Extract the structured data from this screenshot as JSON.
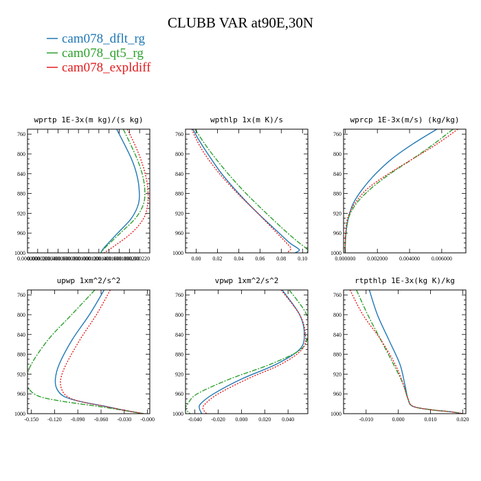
{
  "title": "CLUBB VAR at90E,30N",
  "legend": [
    {
      "label": "cam078_dflt_rg",
      "color": "#1f77b4",
      "dash": "solid"
    },
    {
      "label": "cam078_qt5_rg",
      "color": "#2ca02c",
      "dash": "dashdot"
    },
    {
      "label": "cam078_expldiff",
      "color": "#e31a1c",
      "dash": "dotted"
    }
  ],
  "chart_data": [
    {
      "type": "line",
      "title": "wprtp  1E-3x(m kg)/(s kg)",
      "xlim": [
        0.0,
        0.00024
      ],
      "ylim": [
        1000,
        750
      ],
      "xticks": [
        0.0,
        2e-05,
        4e-05,
        6e-05,
        8e-05,
        0.0001,
        0.00012,
        0.00014,
        0.00016,
        0.00018,
        0.0002,
        0.00022
      ],
      "xtick_labels": [
        "0.000000",
        "0.000020",
        "0.000040",
        "0.000060",
        "0.000080",
        "0.000100",
        "0.000120",
        "0.000140",
        "0.000160",
        "0.000180",
        "0.000200",
        "0.000220"
      ],
      "yticks": [
        760,
        800,
        840,
        880,
        920,
        960,
        1000
      ],
      "y": [
        750,
        780,
        810,
        840,
        870,
        900,
        930,
        960,
        990,
        1000
      ],
      "series": [
        {
          "name": "cam078_dflt_rg",
          "x": [
            0.000175,
            0.00019,
            0.000204,
            0.000214,
            0.000219,
            0.000218,
            0.000204,
            0.000177,
            0.00015,
            0.000144
          ]
        },
        {
          "name": "cam078_qt5_rg",
          "x": [
            0.000188,
            0.000202,
            0.000215,
            0.000225,
            0.00023,
            0.000228,
            0.000212,
            0.000182,
            0.000152,
            0.000144
          ]
        },
        {
          "name": "cam078_expldiff",
          "x": [
            0.000196,
            0.00021,
            0.000222,
            0.000231,
            0.000236,
            0.000236,
            0.000228,
            0.000204,
            0.000165,
            0.00015
          ]
        }
      ]
    },
    {
      "type": "line",
      "title": "wpthlp  1x(m K)/s",
      "xlim": [
        -0.01,
        0.105
      ],
      "ylim": [
        1000,
        750
      ],
      "xticks": [
        0.0,
        0.02,
        0.04,
        0.06,
        0.08,
        0.1
      ],
      "xtick_labels": [
        "0.00",
        "0.02",
        "0.04",
        "0.06",
        "0.08",
        "0.10"
      ],
      "yticks": [
        760,
        800,
        840,
        880,
        920,
        960,
        1000
      ],
      "y": [
        750,
        770,
        800,
        840,
        880,
        920,
        960,
        980,
        990,
        995,
        1000
      ],
      "series": [
        {
          "name": "cam078_dflt_rg",
          "x": [
            -0.003,
            0.002,
            0.011,
            0.024,
            0.04,
            0.058,
            0.078,
            0.088,
            0.095,
            0.097,
            0.093
          ]
        },
        {
          "name": "cam078_qt5_rg",
          "x": [
            -0.001,
            0.005,
            0.015,
            0.03,
            0.047,
            0.066,
            0.086,
            0.097,
            0.103,
            0.105,
            0.104
          ]
        },
        {
          "name": "cam078_expldiff",
          "x": [
            -0.004,
            0.0,
            0.008,
            0.022,
            0.039,
            0.058,
            0.076,
            0.085,
            0.089,
            0.088,
            0.085
          ]
        }
      ]
    },
    {
      "type": "line",
      "title": "wprcp  1E-3x(m/s) (kg/kg)",
      "xlim": [
        -0.0001,
        0.0075
      ],
      "ylim": [
        1000,
        750
      ],
      "xticks": [
        0.0,
        0.002,
        0.004,
        0.006
      ],
      "xtick_labels": [
        "0.000000",
        "0.002000",
        "0.004000",
        "0.006000"
      ],
      "yticks": [
        760,
        800,
        840,
        880,
        920,
        960,
        1000
      ],
      "y": [
        750,
        780,
        810,
        840,
        870,
        900,
        930,
        960,
        990,
        1000
      ],
      "series": [
        {
          "name": "cam078_dflt_rg",
          "x": [
            0.0057,
            0.0042,
            0.0029,
            0.0019,
            0.0011,
            0.0005,
            0.0002,
            5e-05,
            0.0,
            0.0
          ]
        },
        {
          "name": "cam078_qt5_rg",
          "x": [
            0.0067,
            0.0055,
            0.0042,
            0.0028,
            0.0016,
            0.0007,
            0.0002,
            5e-05,
            0.0,
            0.0
          ]
        },
        {
          "name": "cam078_expldiff",
          "x": [
            0.007,
            0.0057,
            0.0042,
            0.0027,
            0.0014,
            0.0006,
            0.00015,
            3e-05,
            0.0,
            0.0
          ]
        }
      ]
    },
    {
      "type": "line",
      "title": "upwp  1xm^2/s^2",
      "xlim": [
        -0.155,
        0.003
      ],
      "ylim": [
        1000,
        750
      ],
      "xticks": [
        -0.15,
        -0.12,
        -0.09,
        -0.06,
        -0.03,
        0.0
      ],
      "xtick_labels": [
        "-0.150",
        "-0.120",
        "-0.090",
        "-0.060",
        "-0.030",
        "-0.000"
      ],
      "yticks": [
        760,
        800,
        840,
        880,
        920,
        960,
        1000
      ],
      "y": [
        750,
        800,
        850,
        900,
        930,
        950,
        965,
        975,
        985,
        993,
        1000
      ],
      "series": [
        {
          "name": "cam078_dflt_rg",
          "x": [
            -0.056,
            -0.075,
            -0.097,
            -0.114,
            -0.119,
            -0.117,
            -0.108,
            -0.088,
            -0.055,
            -0.03,
            -0.005
          ]
        },
        {
          "name": "cam078_qt5_rg",
          "x": [
            -0.068,
            -0.098,
            -0.128,
            -0.15,
            -0.156,
            -0.153,
            -0.14,
            -0.11,
            -0.065,
            -0.032,
            -0.005
          ]
        },
        {
          "name": "cam078_expldiff",
          "x": [
            -0.048,
            -0.066,
            -0.087,
            -0.105,
            -0.112,
            -0.111,
            -0.104,
            -0.088,
            -0.056,
            -0.03,
            -0.005
          ]
        }
      ]
    },
    {
      "type": "line",
      "title": "vpwp  1xm^2/s^2",
      "xlim": [
        -0.048,
        0.057
      ],
      "ylim": [
        1000,
        750
      ],
      "xticks": [
        -0.04,
        -0.02,
        0.0,
        0.02,
        0.04
      ],
      "xtick_labels": [
        "-0.040",
        "-0.020",
        "0.000",
        "0.020",
        "0.040"
      ],
      "yticks": [
        760,
        800,
        840,
        880,
        920,
        960,
        1000
      ],
      "y": [
        750,
        800,
        840,
        870,
        900,
        930,
        960,
        980,
        990,
        1000
      ],
      "series": [
        {
          "name": "cam078_dflt_rg",
          "x": [
            0.035,
            0.05,
            0.054,
            0.05,
            0.03,
            0.0,
            -0.024,
            -0.035,
            -0.036,
            -0.034
          ]
        },
        {
          "name": "cam078_qt5_rg",
          "x": [
            0.041,
            0.056,
            0.057,
            0.051,
            0.025,
            -0.01,
            -0.038,
            -0.046,
            -0.048,
            -0.044
          ]
        },
        {
          "name": "cam078_expldiff",
          "x": [
            0.034,
            0.05,
            0.055,
            0.052,
            0.034,
            0.005,
            -0.02,
            -0.031,
            -0.033,
            -0.03
          ]
        }
      ]
    },
    {
      "type": "line",
      "title": "rtpthlp  1E-3x(kg K)/kg",
      "xlim": [
        -0.017,
        0.021
      ],
      "ylim": [
        1000,
        750
      ],
      "xticks": [
        -0.01,
        0.0,
        0.01,
        0.02
      ],
      "xtick_labels": [
        "-0.010",
        "0.000",
        "0.010",
        "0.020"
      ],
      "yticks": [
        760,
        800,
        840,
        880,
        920,
        960,
        1000
      ],
      "y": [
        750,
        800,
        850,
        900,
        940,
        970,
        985,
        992,
        996,
        1000
      ],
      "series": [
        {
          "name": "cam078_dflt_rg",
          "x": [
            -0.009,
            -0.0065,
            -0.003,
            0.0005,
            0.002,
            0.003,
            0.0045,
            0.01,
            0.016,
            0.02
          ]
        },
        {
          "name": "cam078_qt5_rg",
          "x": [
            -0.013,
            -0.0095,
            -0.0055,
            -0.0015,
            0.0015,
            0.003,
            0.0045,
            0.01,
            0.016,
            0.02
          ]
        },
        {
          "name": "cam078_expldiff",
          "x": [
            -0.015,
            -0.011,
            -0.0055,
            -0.001,
            0.0015,
            0.003,
            0.0045,
            0.01,
            0.016,
            0.02
          ]
        }
      ]
    }
  ]
}
